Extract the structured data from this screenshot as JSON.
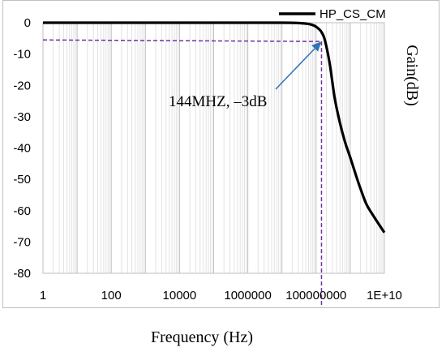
{
  "chart_data": {
    "type": "line",
    "title": "",
    "xlabel": "Frequency (Hz)",
    "ylabel": "Gain(dB)",
    "x_scale": "log",
    "xlim": [
      1,
      10000000000
    ],
    "ylim": [
      -80,
      0
    ],
    "x_ticks": [
      1,
      100,
      10000,
      1000000,
      100000000,
      10000000000
    ],
    "x_tick_labels": [
      "1",
      "100",
      "10000",
      "1000000",
      "100000000",
      "1E+10"
    ],
    "y_ticks": [
      0,
      -10,
      -20,
      -30,
      -40,
      -50,
      -60,
      -70,
      -80
    ],
    "y_tick_labels": [
      "0",
      "-10",
      "-20",
      "-30",
      "-40",
      "-50",
      "-60",
      "-70",
      "-80"
    ],
    "grid": "vertical",
    "legend_position": "top-right",
    "series": [
      {
        "name": "HP_CS_CM",
        "color": "#000000",
        "x": [
          1,
          1000,
          1000000,
          10000000,
          30000000,
          60000000,
          90000000,
          120000000,
          144000000,
          180000000,
          250000000,
          350000000,
          500000000,
          700000000,
          1000000000,
          1500000000,
          2000000000,
          3000000000,
          5000000000,
          10000000000
        ],
        "y": [
          0,
          0,
          0,
          0,
          -0.1,
          -0.4,
          -1,
          -2,
          -3,
          -5.5,
          -13,
          -24,
          -32,
          -38,
          -43,
          -49,
          -53,
          -58,
          -62,
          -67
        ]
      }
    ],
    "annotations": [
      {
        "text": "144MHZ, –3dB",
        "x": 144000000,
        "y": -6
      }
    ],
    "reference_lines": {
      "x": 144000000,
      "y": -6,
      "color": "#7030a0"
    },
    "arrow_color": "#2e75b6"
  }
}
